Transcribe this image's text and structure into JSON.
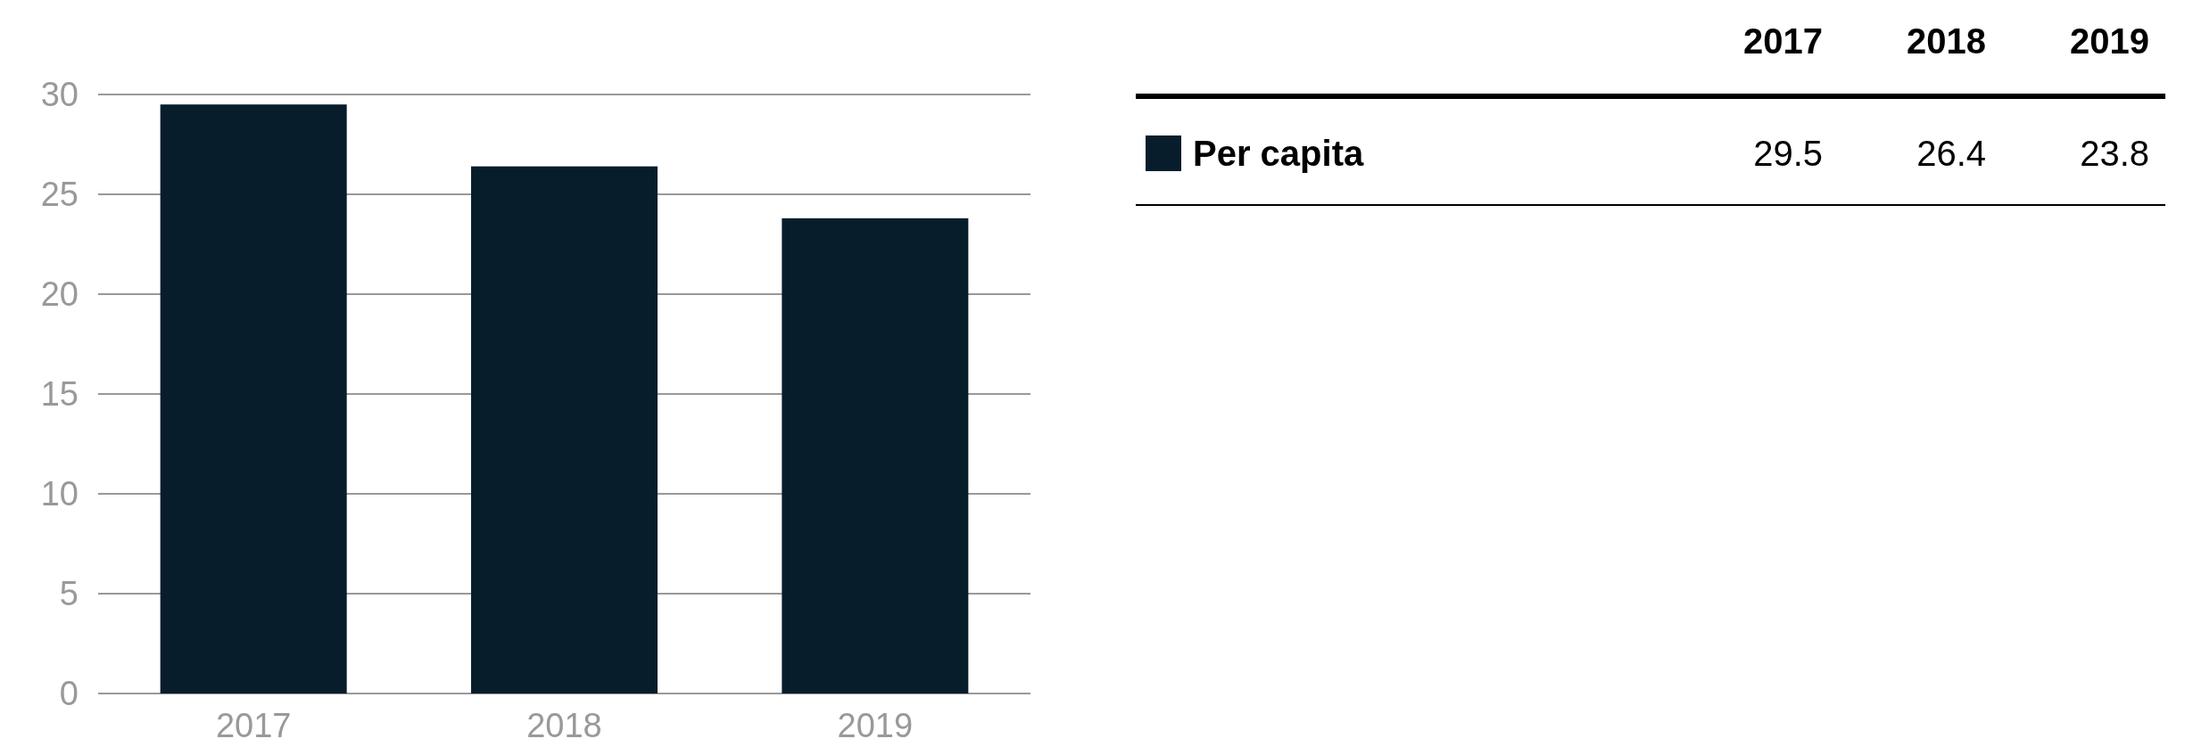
{
  "chart_data": [
    {
      "type": "bar",
      "categories": [
        "2017",
        "2018",
        "2019"
      ],
      "series": [
        {
          "color": "#081d2c",
          "values": [
            29.5,
            26.4,
            23.8
          ]
        }
      ],
      "ylim": [
        0,
        30
      ],
      "yticks": [
        0,
        5,
        10,
        15,
        20,
        25,
        30
      ],
      "grid": "y"
    },
    {
      "type": "other",
      "categories": [
        "2017",
        "2018",
        "2019"
      ],
      "series": [
        {
          "name": "Per capita",
          "color": "#081d2c",
          "values": [
            29.5,
            26.4,
            23.8
          ]
        }
      ],
      "data_labels": true
    }
  ]
}
